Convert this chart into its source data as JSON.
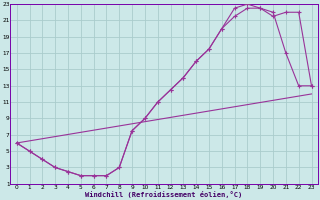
{
  "xlabel": "Windchill (Refroidissement éolien,°C)",
  "background_color": "#cce8e8",
  "grid_color": "#aacccc",
  "line_color": "#993399",
  "xlim": [
    -0.5,
    23.5
  ],
  "ylim": [
    1,
    23
  ],
  "xticks": [
    0,
    1,
    2,
    3,
    4,
    5,
    6,
    7,
    8,
    9,
    10,
    11,
    12,
    13,
    14,
    15,
    16,
    17,
    18,
    19,
    20,
    21,
    22,
    23
  ],
  "yticks": [
    1,
    3,
    5,
    7,
    9,
    11,
    13,
    15,
    17,
    19,
    21,
    23
  ],
  "line1_x": [
    0,
    1,
    2,
    3,
    4,
    5,
    6,
    7,
    8,
    9,
    10,
    11,
    12,
    13,
    14,
    15,
    16,
    17,
    18,
    19,
    20,
    21,
    22,
    23
  ],
  "line1_y": [
    6,
    5,
    4,
    3,
    2.5,
    2,
    2,
    2,
    3,
    7.5,
    9,
    11,
    12.5,
    14,
    16,
    17.5,
    20,
    21.5,
    22.5,
    22.5,
    22,
    17,
    13,
    13
  ],
  "line2_x": [
    0,
    1,
    2,
    3,
    4,
    5,
    6,
    7,
    8,
    9,
    10,
    11,
    12,
    13,
    14,
    15,
    16,
    17,
    18,
    19,
    20,
    21,
    22,
    23
  ],
  "line2_y": [
    6,
    5,
    4,
    3,
    2.5,
    2,
    2,
    2,
    3,
    7.5,
    9,
    11,
    12.5,
    14,
    16,
    17.5,
    20,
    22.5,
    23,
    22.5,
    21.5,
    22,
    22,
    13
  ],
  "line3_x": [
    0,
    23
  ],
  "line3_y": [
    6,
    12
  ]
}
